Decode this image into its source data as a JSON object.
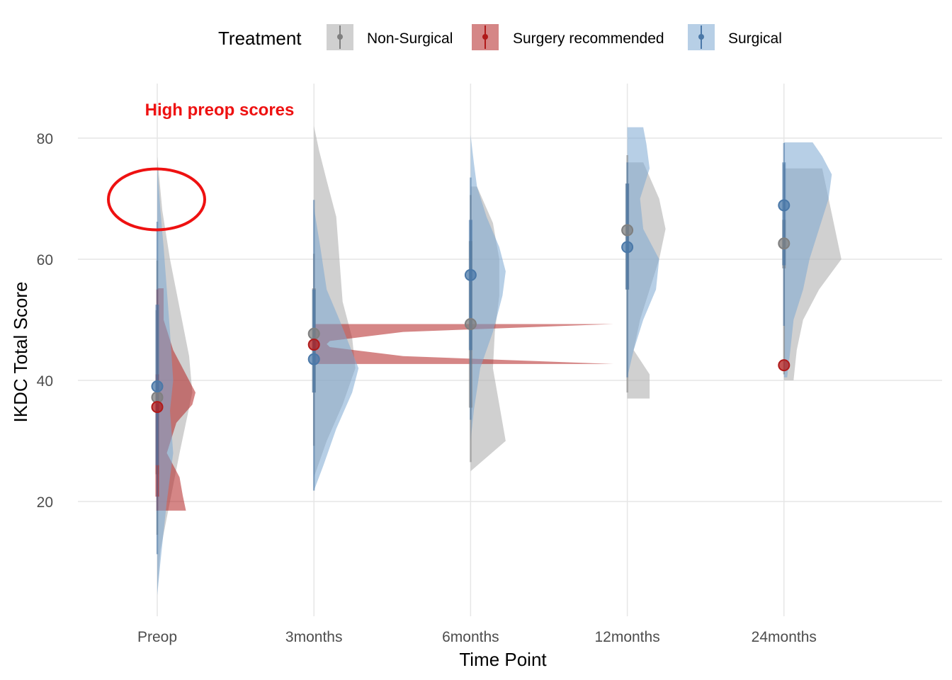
{
  "chart_data": {
    "type": "violin",
    "title": "",
    "xlabel": "Time Point",
    "ylabel": "IKDC Total Score",
    "ylim": [
      3,
      89
    ],
    "yticks": [
      20,
      40,
      60,
      80
    ],
    "categories": [
      "Preop",
      "3months",
      "6months",
      "12months",
      "24months"
    ],
    "grid": true,
    "legend": {
      "title": "Treatment",
      "position": "top",
      "entries": [
        "Non-Surgical",
        "Surgery recommended",
        "Surgical"
      ]
    },
    "annotation": {
      "text": "High preop scores",
      "color": "#ee1111",
      "target": {
        "category": "Preop",
        "y_center": 70
      }
    },
    "series": [
      {
        "name": "Non-Surgical",
        "color": "#a9a9a9",
        "point_color": "#7f7f7f",
        "means": [
          37.2,
          47.7,
          49.3,
          64.8,
          62.6
        ],
        "ranges": [
          [
            14.5,
            59.8
          ],
          [
            29.2,
            60.9
          ],
          [
            26.5,
            70.6
          ],
          [
            38.0,
            77.2
          ],
          [
            41.0,
            75.7
          ]
        ],
        "inner": [
          [
            24.5,
            51.6
          ],
          [
            38.0,
            55.2
          ],
          [
            35.5,
            63.0
          ],
          [
            55.0,
            72.5
          ],
          [
            58.5,
            66.5
          ]
        ],
        "violin_span": [
          [
            5,
            77
          ],
          [
            24,
            82
          ],
          [
            25,
            72
          ],
          [
            37,
            76
          ],
          [
            40,
            75
          ]
        ],
        "violin_profile": [
          [
            [
              5,
              0
            ],
            [
              12,
              0.05
            ],
            [
              20,
              0.2
            ],
            [
              28,
              0.35
            ],
            [
              33,
              0.45
            ],
            [
              38,
              0.55
            ],
            [
              44,
              0.5
            ],
            [
              52,
              0.35
            ],
            [
              60,
              0.2
            ],
            [
              68,
              0.08
            ],
            [
              77,
              0
            ]
          ],
          [
            [
              24,
              0
            ],
            [
              30,
              0.2
            ],
            [
              36,
              0.45
            ],
            [
              42,
              0.65
            ],
            [
              47,
              0.6
            ],
            [
              53,
              0.45
            ],
            [
              60,
              0.4
            ],
            [
              67,
              0.35
            ],
            [
              73,
              0.2
            ],
            [
              78,
              0.08
            ],
            [
              82,
              0
            ]
          ],
          [
            [
              25,
              0
            ],
            [
              30,
              0.55
            ],
            [
              36,
              0.45
            ],
            [
              42,
              0.35
            ],
            [
              48,
              0.38
            ],
            [
              54,
              0.45
            ],
            [
              60,
              0.45
            ],
            [
              66,
              0.35
            ],
            [
              72,
              0.1
            ]
          ],
          [
            [
              37,
              0.35
            ],
            [
              41,
              0.35
            ],
            [
              45,
              0.1
            ],
            [
              50,
              0.2
            ],
            [
              55,
              0.35
            ],
            [
              60,
              0.5
            ],
            [
              65,
              0.6
            ],
            [
              70,
              0.5
            ],
            [
              76,
              0.25
            ]
          ],
          [
            [
              40,
              0.15
            ],
            [
              45,
              0.2
            ],
            [
              50,
              0.3
            ],
            [
              55,
              0.55
            ],
            [
              60,
              0.9
            ],
            [
              65,
              0.8
            ],
            [
              70,
              0.7
            ],
            [
              75,
              0.6
            ]
          ]
        ]
      },
      {
        "name": "Surgery recommended",
        "color": "#b22222",
        "point_color": "#b01a1a",
        "means": [
          35.6,
          45.9,
          null,
          null,
          42.5
        ],
        "ranges": [
          [
            18.5,
            55.0
          ],
          null,
          null,
          null,
          null
        ],
        "inner": [
          [
            20.8,
            41.0
          ],
          null,
          null,
          null,
          null
        ],
        "violin_span": [
          [
            18.5,
            55.2
          ],
          [
            42.7,
            49.3
          ],
          null,
          null,
          null
        ],
        "violin_profile": [
          [
            [
              18.5,
              0.45
            ],
            [
              21,
              0.4
            ],
            [
              24,
              0.35
            ],
            [
              28,
              0.15
            ],
            [
              33,
              0.3
            ],
            [
              36,
              0.55
            ],
            [
              38,
              0.6
            ],
            [
              41,
              0.45
            ],
            [
              45,
              0.25
            ],
            [
              50,
              0.1
            ],
            [
              55.2,
              0.1
            ]
          ],
          [
            [
              42.7,
              4.7
            ],
            [
              44,
              1.4
            ],
            [
              45.5,
              0.25
            ],
            [
              46,
              0.2
            ],
            [
              46.5,
              0.25
            ],
            [
              48,
              1.4
            ],
            [
              49.3,
              4.7
            ]
          ],
          null,
          null,
          null
        ]
      },
      {
        "name": "Surgical",
        "color": "#7ba7d1",
        "point_color": "#4a78a8",
        "means": [
          39.0,
          43.5,
          57.4,
          62.0,
          68.9
        ],
        "ranges": [
          [
            11.3,
            66.2
          ],
          [
            21.8,
            69.8
          ],
          [
            33.5,
            73.5
          ],
          [
            40.5,
            76.0
          ],
          [
            49.0,
            79.2
          ]
        ],
        "inner": [
          [
            26.0,
            52.5
          ],
          [
            38.0,
            55.0
          ],
          [
            45.0,
            66.5
          ],
          [
            55.0,
            72.5
          ],
          [
            59.0,
            76.0
          ]
        ],
        "violin_span": [
          [
            4.5,
            75.5
          ],
          [
            21.8,
            68.5
          ],
          [
            30,
            80.5
          ],
          [
            40.5,
            81.8
          ],
          [
            40.5,
            79.3
          ]
        ],
        "violin_profile": [
          [
            [
              4.5,
              0
            ],
            [
              10,
              0.05
            ],
            [
              20,
              0.15
            ],
            [
              28,
              0.25
            ],
            [
              35,
              0.2
            ],
            [
              40,
              0.25
            ],
            [
              48,
              0.2
            ],
            [
              55,
              0.15
            ],
            [
              62,
              0.1
            ],
            [
              68,
              0.05
            ],
            [
              75.5,
              0
            ]
          ],
          [
            [
              21.8,
              0
            ],
            [
              26,
              0.15
            ],
            [
              32,
              0.35
            ],
            [
              38,
              0.6
            ],
            [
              42,
              0.7
            ],
            [
              46,
              0.55
            ],
            [
              50,
              0.4
            ],
            [
              55,
              0.2
            ],
            [
              62,
              0.1
            ],
            [
              68.5,
              0
            ]
          ],
          [
            [
              30,
              0
            ],
            [
              35,
              0.05
            ],
            [
              42,
              0.15
            ],
            [
              48,
              0.35
            ],
            [
              54,
              0.5
            ],
            [
              58,
              0.55
            ],
            [
              62,
              0.45
            ],
            [
              67,
              0.25
            ],
            [
              72,
              0.1
            ],
            [
              76,
              0.05
            ],
            [
              80.5,
              0
            ]
          ],
          [
            [
              40.5,
              0
            ],
            [
              45,
              0.1
            ],
            [
              50,
              0.25
            ],
            [
              55,
              0.45
            ],
            [
              60,
              0.5
            ],
            [
              65,
              0.25
            ],
            [
              70,
              0.2
            ],
            [
              75,
              0.35
            ],
            [
              79,
              0.3
            ],
            [
              81.8,
              0.25
            ]
          ],
          [
            [
              40.5,
              0.05
            ],
            [
              45,
              0.1
            ],
            [
              50,
              0.15
            ],
            [
              55,
              0.3
            ],
            [
              60,
              0.4
            ],
            [
              65,
              0.55
            ],
            [
              70,
              0.7
            ],
            [
              74,
              0.75
            ],
            [
              77,
              0.6
            ],
            [
              79.3,
              0.45
            ]
          ]
        ]
      }
    ]
  }
}
